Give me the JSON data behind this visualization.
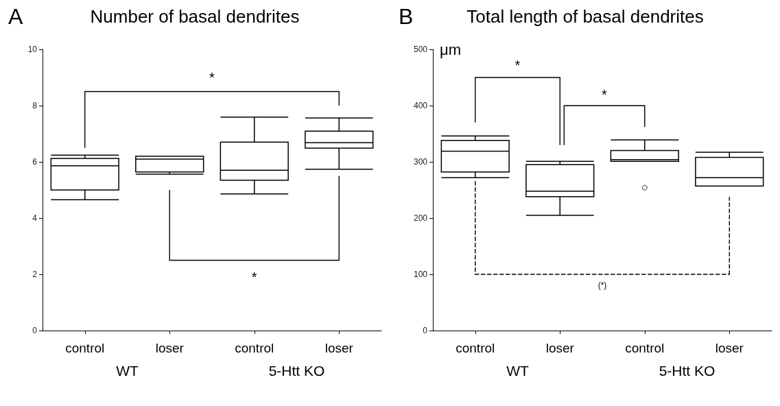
{
  "chart_data": [
    {
      "type": "box",
      "title": "Number of basal dendrites",
      "categories": [
        "control",
        "loser",
        "control",
        "loser"
      ],
      "series": [
        {
          "color": "#000000",
          "boxes": [
            {
              "low": 4.65,
              "q1": 5.0,
              "median": 5.86,
              "q3": 6.12,
              "high": 6.24
            },
            {
              "low": 5.56,
              "q1": 5.64,
              "median": 6.1,
              "q3": 6.2,
              "high": 6.2
            },
            {
              "low": 4.86,
              "q1": 5.35,
              "median": 5.7,
              "q3": 6.7,
              "high": 7.59
            },
            {
              "low": 5.74,
              "q1": 6.49,
              "median": 6.68,
              "q3": 7.09,
              "high": 7.56
            }
          ]
        }
      ],
      "ylim": [
        0,
        10
      ],
      "yticks": [
        0,
        2,
        4,
        6,
        8,
        10
      ],
      "grid": false,
      "annotations": [
        "A",
        "*",
        "*",
        "WT",
        "5-Htt KO"
      ]
    },
    {
      "type": "box",
      "title": "Total length of basal dendrites",
      "ylabel": "μm",
      "categories": [
        "control",
        "loser",
        "control",
        "loser"
      ],
      "series": [
        {
          "color": "#000000",
          "boxes": [
            {
              "low": 272,
              "q1": 282,
              "median": 319,
              "q3": 338,
              "high": 346
            },
            {
              "low": 205,
              "q1": 238,
              "median": 248,
              "q3": 295,
              "high": 301
            },
            {
              "low": 301,
              "q1": 301,
              "median": 304,
              "q3": 320,
              "high": 339,
              "outliers": [
                254
              ]
            },
            {
              "low": 257,
              "q1": 257,
              "median": 272,
              "q3": 308,
              "high": 317
            }
          ]
        }
      ],
      "ylim": [
        0,
        500
      ],
      "yticks": [
        0,
        100,
        200,
        300,
        400,
        500
      ],
      "grid": false,
      "annotations": [
        "B",
        "*",
        "*",
        "(*)",
        "WT",
        "5-Htt KO"
      ]
    }
  ]
}
